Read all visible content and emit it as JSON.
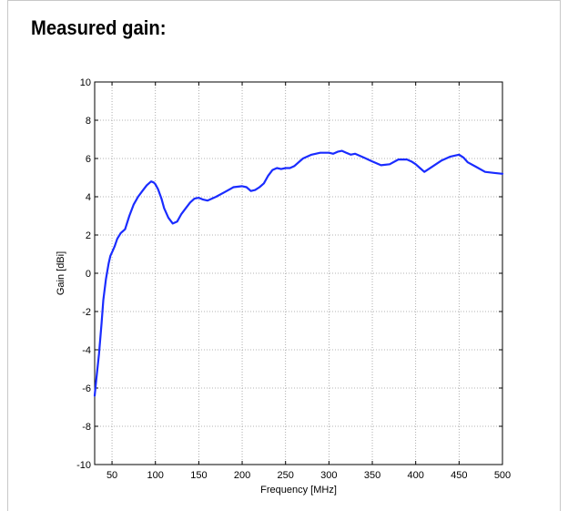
{
  "heading": "Measured gain:",
  "chart_data": {
    "type": "line",
    "title": "",
    "xlabel": "Frequency [MHz]",
    "ylabel": "Gain [dBi]",
    "xlim": [
      30,
      500
    ],
    "ylim": [
      -10,
      10
    ],
    "xticks": [
      50,
      100,
      150,
      200,
      250,
      300,
      350,
      400,
      450,
      500
    ],
    "yticks": [
      -10,
      -8,
      -6,
      -4,
      -2,
      0,
      2,
      4,
      6,
      8,
      10
    ],
    "grid": true,
    "line_color": "#1a2cff",
    "series": [
      {
        "x": [
          30,
          32,
          35,
          38,
          40,
          43,
          46,
          48,
          50,
          53,
          56,
          60,
          65,
          70,
          75,
          80,
          85,
          90,
          95,
          98,
          100,
          103,
          107,
          110,
          115,
          120,
          125,
          130,
          135,
          140,
          145,
          150,
          155,
          160,
          170,
          180,
          190,
          200,
          205,
          210,
          215,
          220,
          225,
          230,
          235,
          240,
          245,
          250,
          255,
          260,
          270,
          280,
          290,
          300,
          305,
          310,
          315,
          320,
          325,
          330,
          340,
          350,
          360,
          370,
          380,
          390,
          395,
          400,
          405,
          410,
          420,
          430,
          440,
          450,
          455,
          460,
          470,
          480,
          490,
          500
        ],
        "y": [
          -6.4,
          -5.5,
          -4.2,
          -2.6,
          -1.4,
          -0.3,
          0.5,
          0.9,
          1.1,
          1.4,
          1.8,
          2.1,
          2.3,
          3.0,
          3.6,
          4.0,
          4.3,
          4.6,
          4.8,
          4.75,
          4.65,
          4.4,
          3.9,
          3.4,
          2.9,
          2.6,
          2.7,
          3.1,
          3.4,
          3.7,
          3.9,
          3.95,
          3.85,
          3.8,
          4.0,
          4.25,
          4.5,
          4.55,
          4.5,
          4.3,
          4.35,
          4.5,
          4.7,
          5.1,
          5.4,
          5.5,
          5.45,
          5.5,
          5.5,
          5.6,
          6.0,
          6.2,
          6.3,
          6.3,
          6.25,
          6.35,
          6.4,
          6.3,
          6.2,
          6.25,
          6.05,
          5.85,
          5.65,
          5.7,
          5.95,
          5.95,
          5.85,
          5.7,
          5.5,
          5.3,
          5.6,
          5.9,
          6.1,
          6.2,
          6.05,
          5.8,
          5.55,
          5.3,
          5.25,
          5.2
        ]
      }
    ]
  }
}
